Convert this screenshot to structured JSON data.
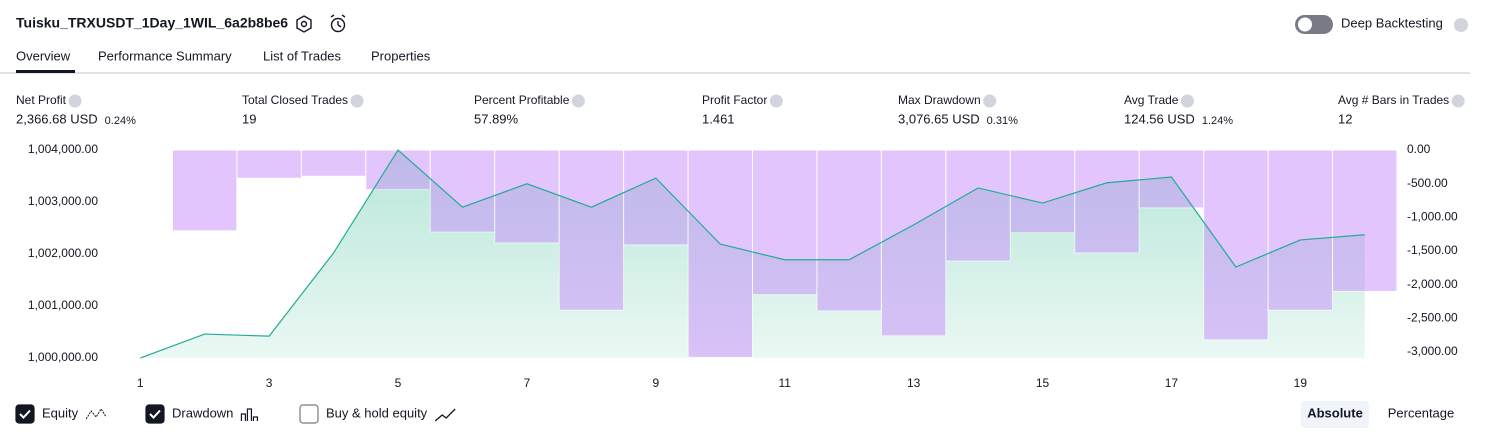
{
  "header": {
    "title": "Tuisku_TRXUSDT_1Day_1WIL_6a2b8be6",
    "toggle_label": "Deep Backtesting"
  },
  "tabs": [
    "Overview",
    "Performance Summary",
    "List of Trades",
    "Properties"
  ],
  "metrics": [
    {
      "label": "Net Profit",
      "value": "2,366.68 USD",
      "percent": "0.24%",
      "color": "#089981"
    },
    {
      "label": "Total Closed Trades",
      "value": "19",
      "color": "#131722"
    },
    {
      "label": "Percent Profitable",
      "value": "57.89%",
      "color": "#089981"
    },
    {
      "label": "Profit Factor",
      "value": "1.461",
      "color": "#089981"
    },
    {
      "label": "Max Drawdown",
      "value": "3,076.65 USD",
      "percent": "0.31%",
      "color": "#f23645"
    },
    {
      "label": "Avg Trade",
      "value": "124.56 USD",
      "percent": "1.24%",
      "color": "#089981"
    },
    {
      "label": "Avg # Bars in Trades",
      "value": "12",
      "color": "#131722"
    }
  ],
  "chart_data": {
    "type": "line",
    "x": [
      1,
      2,
      3,
      4,
      5,
      6,
      7,
      8,
      9,
      10,
      11,
      12,
      13,
      14,
      15,
      16,
      17,
      18,
      19,
      20
    ],
    "xlim": [
      0.5,
      20.5
    ],
    "xticks": [
      1,
      3,
      5,
      7,
      9,
      11,
      13,
      15,
      17,
      19
    ],
    "series": [
      {
        "name": "Equity",
        "type": "area",
        "color": "#22ab94",
        "axis": "y",
        "values": [
          1000000,
          1000460,
          1000420,
          1002020,
          1004000,
          1002900,
          1003350,
          1002900,
          1003460,
          1002190,
          1001890,
          1001890,
          1002560,
          1003270,
          1002980,
          1003370,
          1003480,
          1001750,
          1002270,
          1002370
        ]
      },
      {
        "name": "Drawdown",
        "type": "bar",
        "color": "#c88dfc",
        "axis": "y2",
        "values": [
          0,
          -1200,
          -420,
          -390,
          -590,
          -1220,
          -1380,
          -2380,
          -1410,
          -3080,
          -2150,
          -2390,
          -2760,
          -1650,
          -1230,
          -1530,
          -860,
          -2820,
          -2380,
          -2100
        ]
      }
    ],
    "ylim": [
      1000000,
      1004000
    ],
    "yticks": [
      {
        "value": 1000000,
        "label": "1,000,000.00"
      },
      {
        "value": 1001000,
        "label": "1,001,000.00"
      },
      {
        "value": 1002000,
        "label": "1,002,000.00"
      },
      {
        "value": 1003000,
        "label": "1,003,000.00"
      },
      {
        "value": 1004000,
        "label": "1,004,000.00"
      }
    ],
    "y2lim": [
      -3000,
      0
    ],
    "y2ticks": [
      {
        "value": 0,
        "label": "0.00"
      },
      {
        "value": -500,
        "label": "-500.00"
      },
      {
        "value": -1000,
        "label": "-1,000.00"
      },
      {
        "value": -1500,
        "label": "-1,500.00"
      },
      {
        "value": -2000,
        "label": "-2,000.00"
      },
      {
        "value": -2500,
        "label": "-2,500.00"
      },
      {
        "value": -3000,
        "label": "-3,000.00"
      }
    ],
    "legend": [
      {
        "name": "Equity",
        "checked": true
      },
      {
        "name": "Drawdown",
        "checked": true
      },
      {
        "name": "Buy & hold equity",
        "checked": false
      }
    ],
    "modes": [
      "Absolute",
      "Percentage"
    ],
    "active_mode": "Absolute"
  }
}
